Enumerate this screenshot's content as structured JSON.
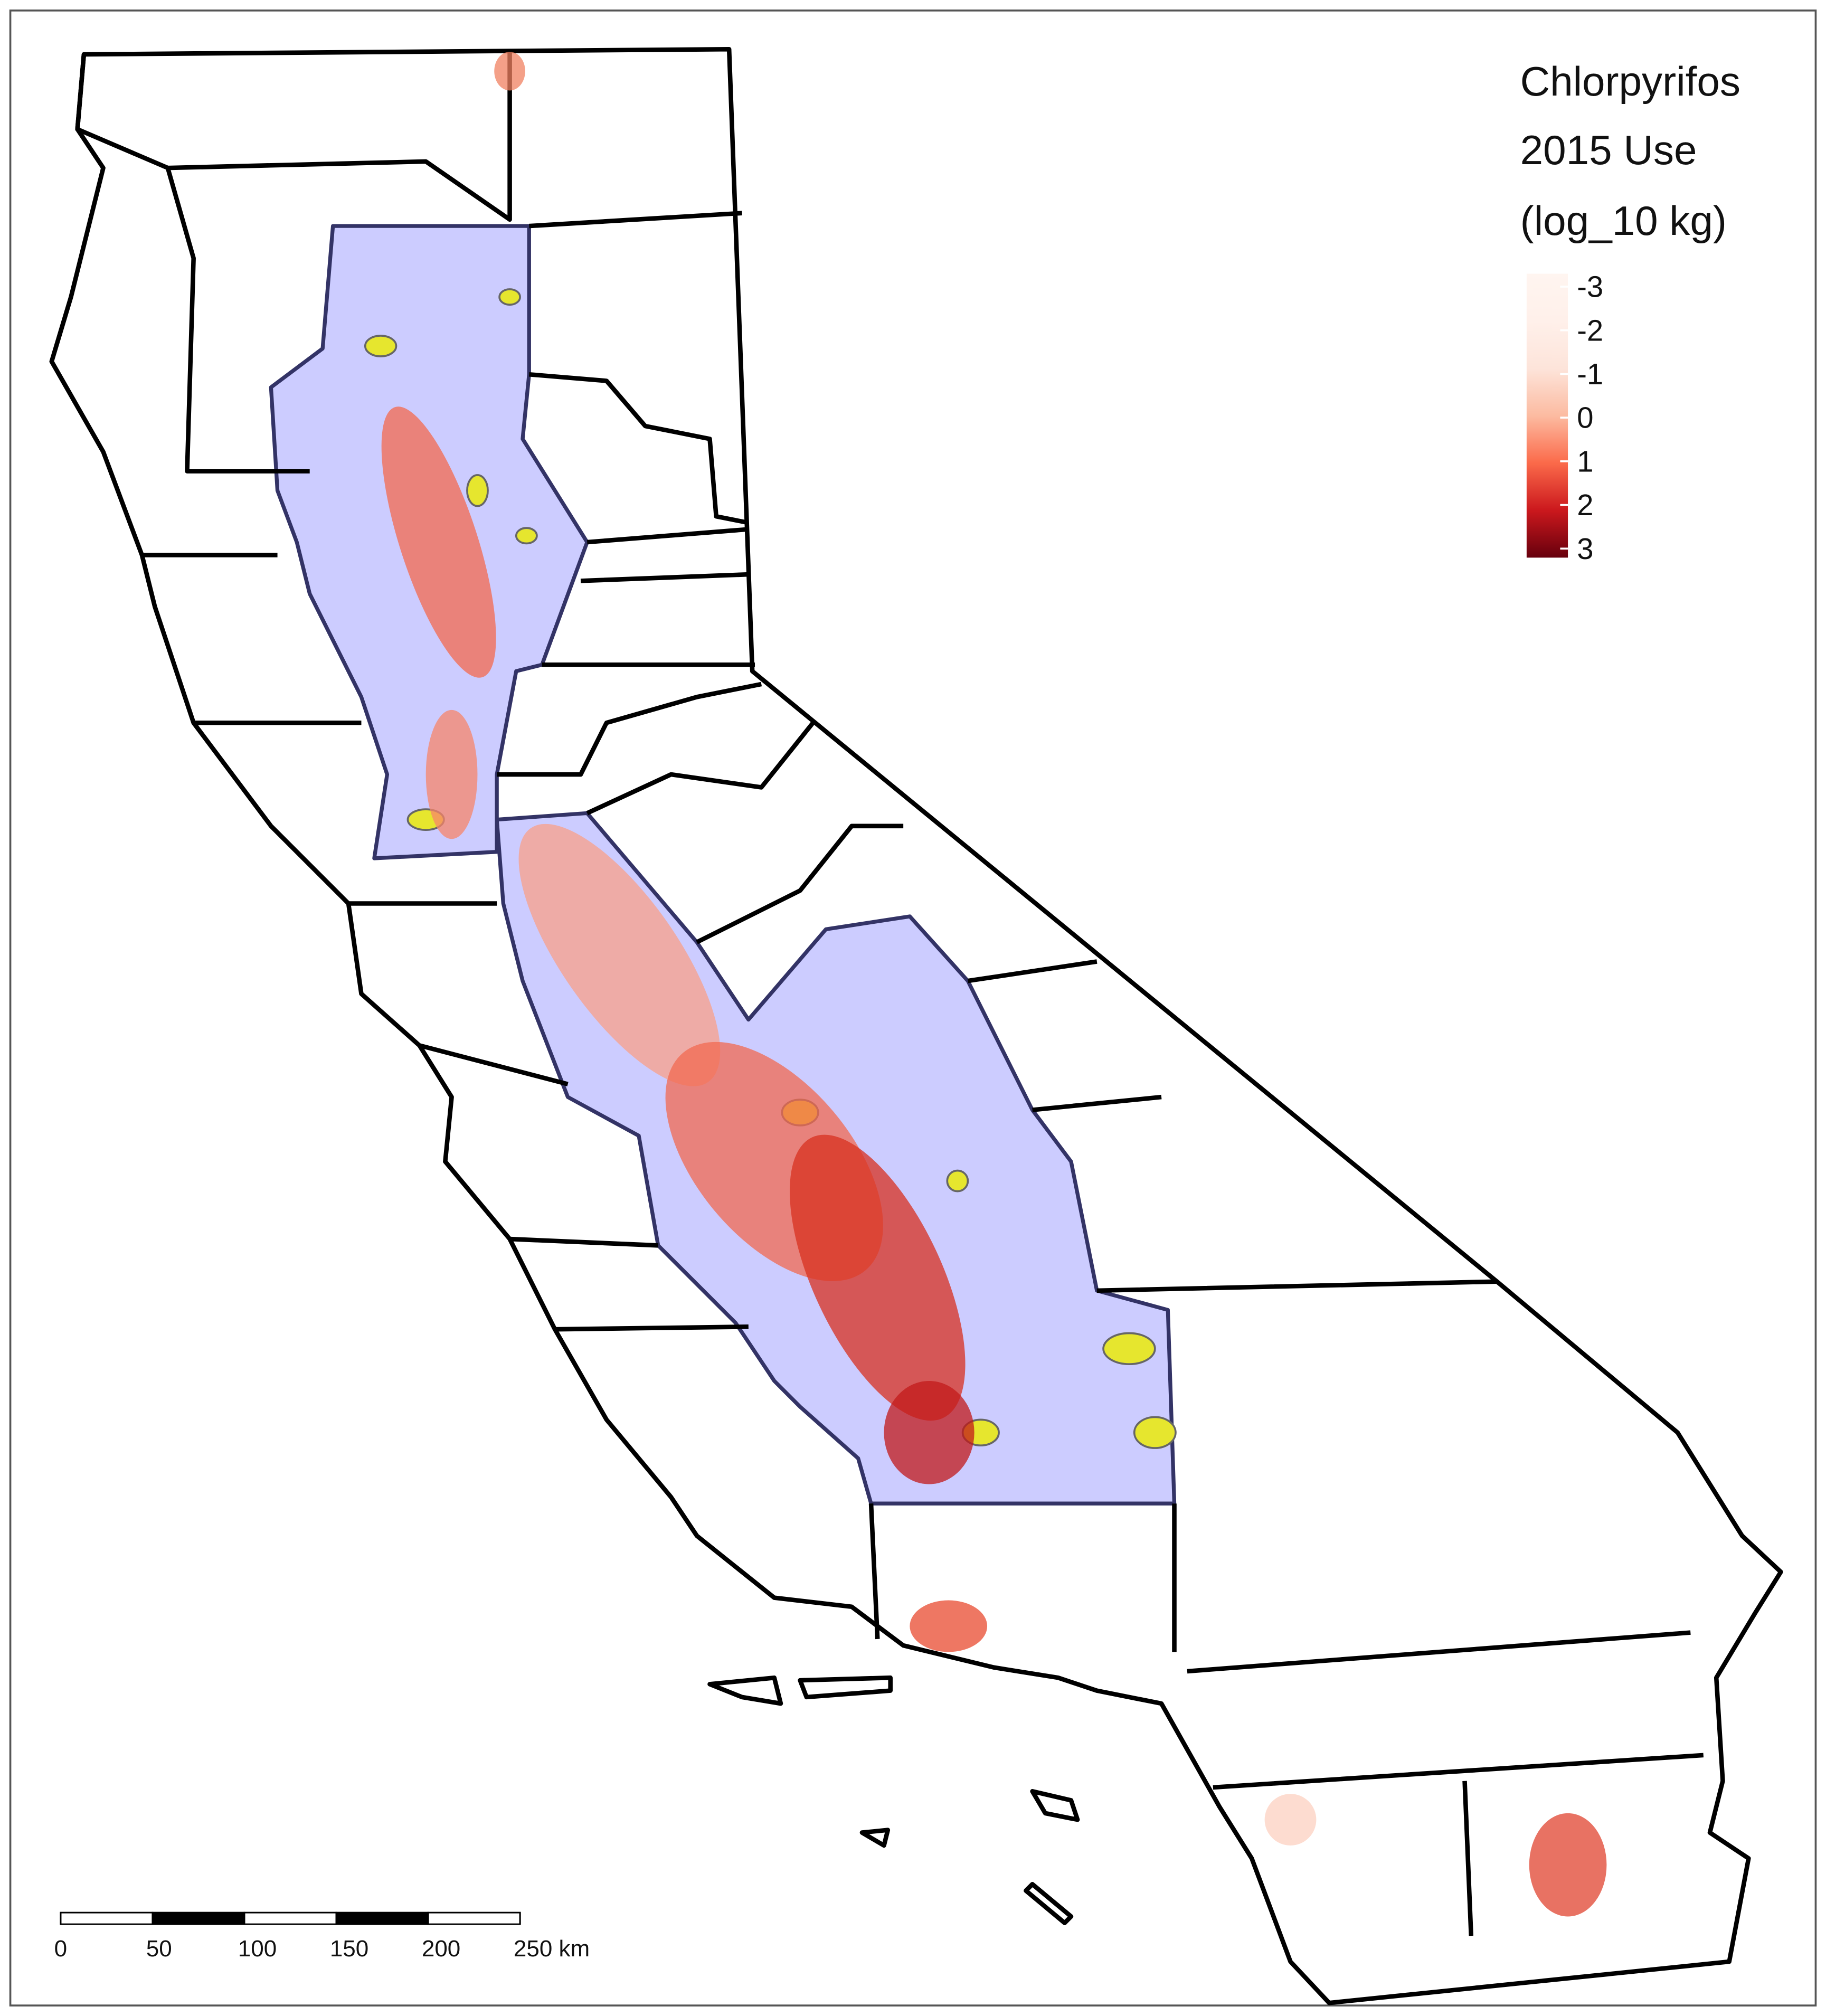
{
  "legend": {
    "title": [
      "Chlorpyrifos",
      "2015 Use",
      "(log_10 kg)"
    ],
    "range": [
      -3,
      3
    ],
    "ticks": [
      -3,
      -2,
      -1,
      0,
      1,
      2,
      3
    ],
    "colors": [
      "#fff5f0",
      "#fff0ea",
      "#fde4da",
      "#fcbba1",
      "#fb6a4a",
      "#cb181d",
      "#67000d"
    ]
  },
  "scale_bar": {
    "range": [
      0,
      250
    ],
    "ticks": [
      0,
      50,
      100,
      150,
      200,
      {
        "value": 250,
        "label": "250 km"
      }
    ]
  }
}
